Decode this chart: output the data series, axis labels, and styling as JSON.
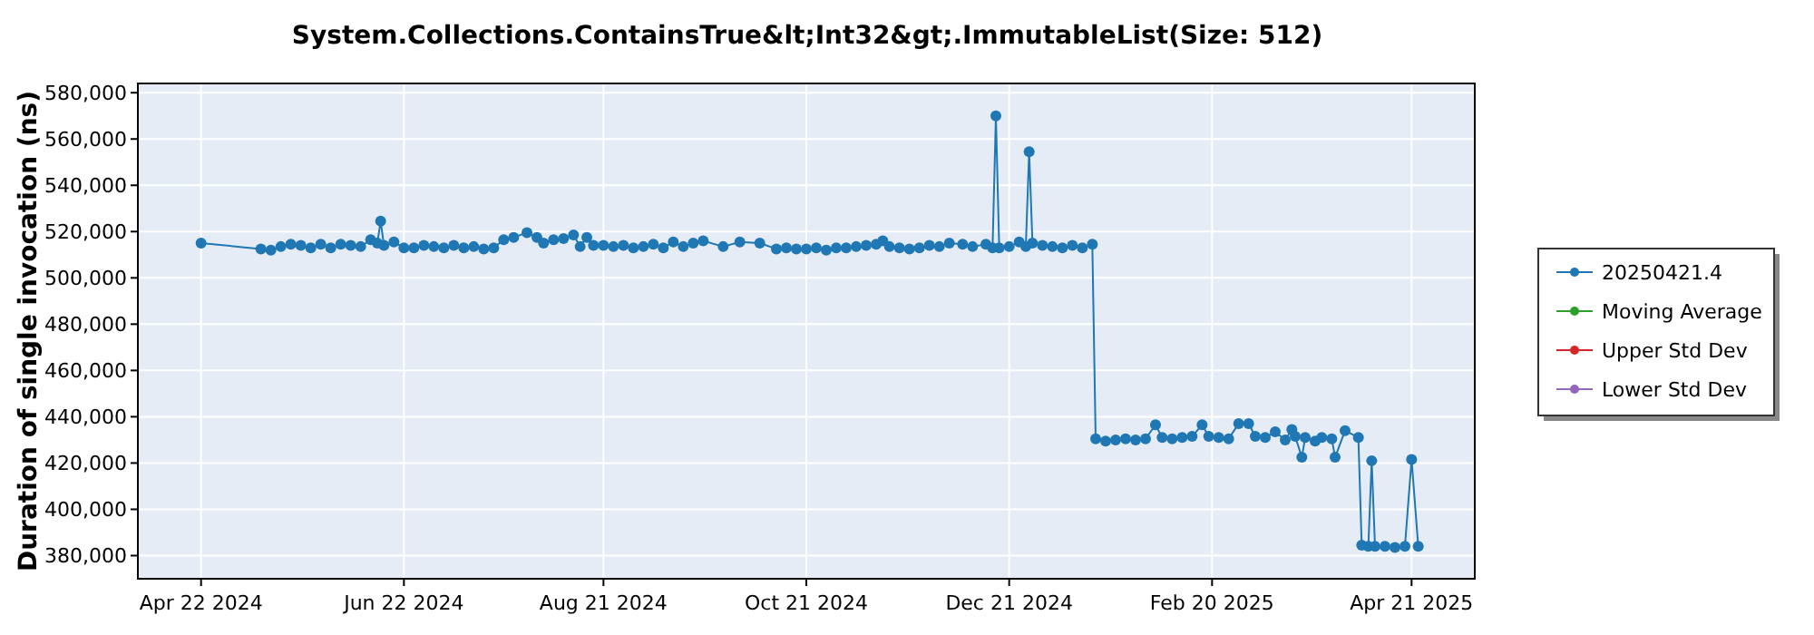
{
  "chart_data": {
    "type": "line",
    "title": "System.Collections.ContainsTrue&lt;Int32&gt;.ImmutableList(Size: 512)",
    "ylabel": "Duration of single invocation (ns)",
    "xlim": [
      "2024-04-03",
      "2025-05-10"
    ],
    "xticks": [
      {
        "value": "2024-04-22",
        "label": "Apr 22 2024"
      },
      {
        "value": "2024-06-22",
        "label": "Jun 22 2024"
      },
      {
        "value": "2024-08-21",
        "label": "Aug 21 2024"
      },
      {
        "value": "2024-10-21",
        "label": "Oct 21 2024"
      },
      {
        "value": "2024-12-21",
        "label": "Dec 21 2024"
      },
      {
        "value": "2025-02-20",
        "label": "Feb 20 2025"
      },
      {
        "value": "2025-04-21",
        "label": "Apr 21 2025"
      }
    ],
    "ylim": [
      370000,
      584000
    ],
    "yticks": [
      {
        "value": 380000,
        "label": "380,000"
      },
      {
        "value": 400000,
        "label": "400,000"
      },
      {
        "value": 420000,
        "label": "420,000"
      },
      {
        "value": 440000,
        "label": "440,000"
      },
      {
        "value": 460000,
        "label": "460,000"
      },
      {
        "value": 480000,
        "label": "480,000"
      },
      {
        "value": 500000,
        "label": "500,000"
      },
      {
        "value": 520000,
        "label": "520,000"
      },
      {
        "value": 540000,
        "label": "540,000"
      },
      {
        "value": 560000,
        "label": "560,000"
      },
      {
        "value": 580000,
        "label": "580,000"
      }
    ],
    "grid": true,
    "legend": "right",
    "marker": "circle",
    "line_style": "solid",
    "series": [
      {
        "name": "20250421.4",
        "color": "#1f77b4",
        "x": [
          "2024-04-22",
          "2024-05-10",
          "2024-05-13",
          "2024-05-16",
          "2024-05-19",
          "2024-05-22",
          "2024-05-25",
          "2024-05-28",
          "2024-05-31",
          "2024-06-03",
          "2024-06-06",
          "2024-06-09",
          "2024-06-12",
          "2024-06-14",
          "2024-06-15",
          "2024-06-16",
          "2024-06-19",
          "2024-06-22",
          "2024-06-25",
          "2024-06-28",
          "2024-07-01",
          "2024-07-04",
          "2024-07-07",
          "2024-07-10",
          "2024-07-13",
          "2024-07-16",
          "2024-07-19",
          "2024-07-22",
          "2024-07-25",
          "2024-07-29",
          "2024-08-01",
          "2024-08-03",
          "2024-08-06",
          "2024-08-09",
          "2024-08-12",
          "2024-08-14",
          "2024-08-16",
          "2024-08-18",
          "2024-08-21",
          "2024-08-24",
          "2024-08-27",
          "2024-08-30",
          "2024-09-02",
          "2024-09-05",
          "2024-09-08",
          "2024-09-11",
          "2024-09-14",
          "2024-09-17",
          "2024-09-20",
          "2024-09-26",
          "2024-10-01",
          "2024-10-07",
          "2024-10-12",
          "2024-10-15",
          "2024-10-18",
          "2024-10-21",
          "2024-10-24",
          "2024-10-27",
          "2024-10-30",
          "2024-11-02",
          "2024-11-05",
          "2024-11-08",
          "2024-11-11",
          "2024-11-13",
          "2024-11-15",
          "2024-11-18",
          "2024-11-21",
          "2024-11-24",
          "2024-11-27",
          "2024-11-30",
          "2024-12-03",
          "2024-12-07",
          "2024-12-10",
          "2024-12-14",
          "2024-12-16",
          "2024-12-17",
          "2024-12-18",
          "2024-12-21",
          "2024-12-24",
          "2024-12-26",
          "2024-12-27",
          "2024-12-28",
          "2024-12-31",
          "2025-01-03",
          "2025-01-06",
          "2025-01-09",
          "2025-01-12",
          "2025-01-15",
          "2025-01-16",
          "2025-01-19",
          "2025-01-22",
          "2025-01-25",
          "2025-01-28",
          "2025-01-31",
          "2025-02-03",
          "2025-02-05",
          "2025-02-08",
          "2025-02-11",
          "2025-02-14",
          "2025-02-17",
          "2025-02-19",
          "2025-02-22",
          "2025-02-25",
          "2025-02-28",
          "2025-03-03",
          "2025-03-05",
          "2025-03-08",
          "2025-03-11",
          "2025-03-14",
          "2025-03-16",
          "2025-03-17",
          "2025-03-19",
          "2025-03-20",
          "2025-03-23",
          "2025-03-25",
          "2025-03-28",
          "2025-03-29",
          "2025-04-01",
          "2025-04-05",
          "2025-04-06",
          "2025-04-08",
          "2025-04-09",
          "2025-04-10",
          "2025-04-13",
          "2025-04-16",
          "2025-04-19",
          "2025-04-21",
          "2025-04-23"
        ],
        "values": [
          515000,
          512500,
          512000,
          513500,
          514500,
          514000,
          513000,
          514500,
          513000,
          514500,
          514000,
          513500,
          516500,
          515000,
          524500,
          514000,
          515500,
          513000,
          513000,
          514000,
          513500,
          513000,
          514000,
          513000,
          513500,
          512500,
          513000,
          516500,
          517500,
          519500,
          517500,
          515000,
          516500,
          517000,
          518500,
          513500,
          517500,
          514000,
          514000,
          513500,
          514000,
          513000,
          513500,
          514500,
          513000,
          515500,
          513500,
          515000,
          516000,
          513500,
          515500,
          515000,
          512500,
          513000,
          512500,
          512500,
          513000,
          512000,
          513000,
          513000,
          513500,
          514000,
          514500,
          516000,
          513500,
          513000,
          512500,
          513000,
          514000,
          513500,
          515000,
          514500,
          513500,
          514500,
          513000,
          570000,
          513000,
          513500,
          515500,
          513500,
          554500,
          515000,
          514000,
          513500,
          513000,
          514000,
          513000,
          514500,
          430500,
          429500,
          430000,
          430500,
          430000,
          430500,
          436500,
          431000,
          430500,
          431000,
          431500,
          436500,
          431500,
          431000,
          430500,
          437000,
          437000,
          431500,
          431000,
          433500,
          430000,
          434500,
          431500,
          422500,
          431000,
          429500,
          431000,
          430500,
          422500,
          434000,
          431000,
          384500,
          384000,
          421000,
          384000,
          384000,
          383500,
          384000,
          421500,
          384000
        ]
      },
      {
        "name": "Moving Average",
        "color": "#2ca02c"
      },
      {
        "name": "Upper Std Dev",
        "color": "#d62728"
      },
      {
        "name": "Lower Std Dev",
        "color": "#9467bd"
      }
    ]
  }
}
